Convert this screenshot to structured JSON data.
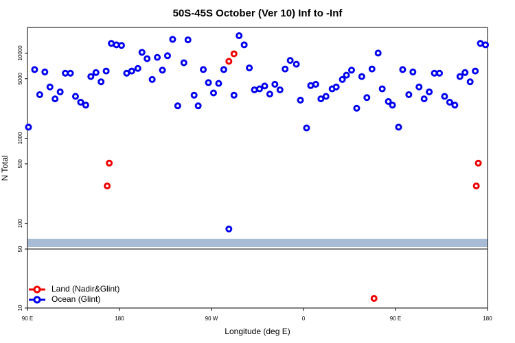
{
  "chart_data": [
    {
      "type": "scatter",
      "title": "50S-45S October (Ver 10)   Inf to -Inf",
      "ylabel": "N Total",
      "log_y": true,
      "xlim": [
        90,
        540
      ],
      "ylim": [
        50,
        20000
      ],
      "yticks": [
        100,
        500,
        1000,
        5000,
        10000
      ],
      "series": [
        {
          "color": "#ee0000",
          "x": [
            168,
            170,
            287,
            292,
            529,
            531
          ],
          "values": [
            275,
            510,
            8000,
            9800,
            275,
            510
          ]
        },
        {
          "color": "#0000ee",
          "x": [
            91,
            97,
            102,
            107,
            112,
            117,
            122,
            127,
            132,
            137,
            142,
            147,
            152,
            157,
            162,
            167,
            172,
            177,
            182,
            187,
            192,
            198,
            202,
            207,
            212,
            217,
            222,
            227,
            232,
            237,
            243,
            247,
            253,
            257,
            262,
            267,
            272,
            277,
            282,
            287,
            292,
            297,
            302,
            307,
            312,
            317,
            322,
            327,
            332,
            337,
            342,
            347,
            353,
            357,
            363,
            367,
            372,
            377,
            382,
            388,
            392,
            398,
            402,
            407,
            412,
            417,
            422,
            427,
            433,
            437,
            443,
            447,
            453,
            457,
            463,
            467,
            473,
            478,
            483,
            488,
            493,
            498,
            503,
            508,
            513,
            518,
            523,
            528,
            533,
            538
          ],
          "values": [
            1350,
            6400,
            3250,
            6000,
            4000,
            2900,
            3500,
            5800,
            5800,
            3100,
            2650,
            2450,
            5300,
            5900,
            4600,
            6150,
            13000,
            12500,
            12300,
            5800,
            6150,
            6600,
            10200,
            8600,
            4900,
            8900,
            6300,
            9300,
            14500,
            2400,
            7700,
            14300,
            3200,
            2400,
            6400,
            4500,
            3400,
            4400,
            6400,
            86,
            3200,
            16000,
            12500,
            6700,
            3700,
            3800,
            4100,
            3300,
            4300,
            3700,
            6500,
            8200,
            7400,
            2800,
            1320,
            4150,
            4300,
            2900,
            3100,
            3800,
            4000,
            4900,
            5500,
            6300,
            2250,
            5300,
            3000,
            6500,
            10000,
            3800,
            2700,
            2450,
            1350,
            6400,
            3250,
            6000,
            4000,
            2900,
            3500,
            5800,
            5800,
            3100,
            2650,
            2450,
            5300,
            5900,
            4600,
            6150,
            13000,
            12500
          ]
        }
      ]
    },
    {
      "type": "scatter",
      "xlabel": "Longitude (deg E)",
      "log_y": true,
      "legend": "upper left",
      "xlim": [
        90,
        540
      ],
      "xticks": [
        {
          "value": 90,
          "label": "90 E"
        },
        180,
        {
          "value": 270,
          "label": "90 W"
        },
        {
          "value": 360,
          "label": "0"
        },
        {
          "value": 450,
          "label": "90 E"
        },
        {
          "value": 540,
          "label": "180"
        }
      ],
      "ylim": [
        10,
        50
      ],
      "yticks": [
        10,
        50
      ],
      "series": [
        {
          "name": "Land (Nadir&Glint)",
          "color": "#ee0000",
          "x": [
            429
          ],
          "values": [
            13
          ]
        },
        {
          "name": "Ocean (Glint)",
          "color": "#0000ee",
          "x": [],
          "values": []
        }
      ]
    }
  ]
}
